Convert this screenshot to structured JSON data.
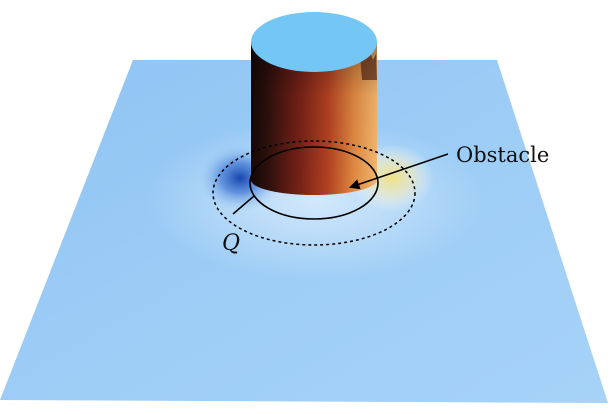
{
  "labels": {
    "obstacle": "Obstacle",
    "point": "Q"
  },
  "colors": {
    "plane": "#9ccbf5",
    "plane_edge": "#8ec3f2",
    "cylinder_top": "#74c6f5",
    "cylinder_dark": "#1a0a08",
    "cylinder_mid": "#b03a1e",
    "cylinder_light": "#f0a252",
    "warm_glow": "#f7e07a",
    "cool_shadow": "#1b4fb8",
    "contour": "#000000"
  }
}
